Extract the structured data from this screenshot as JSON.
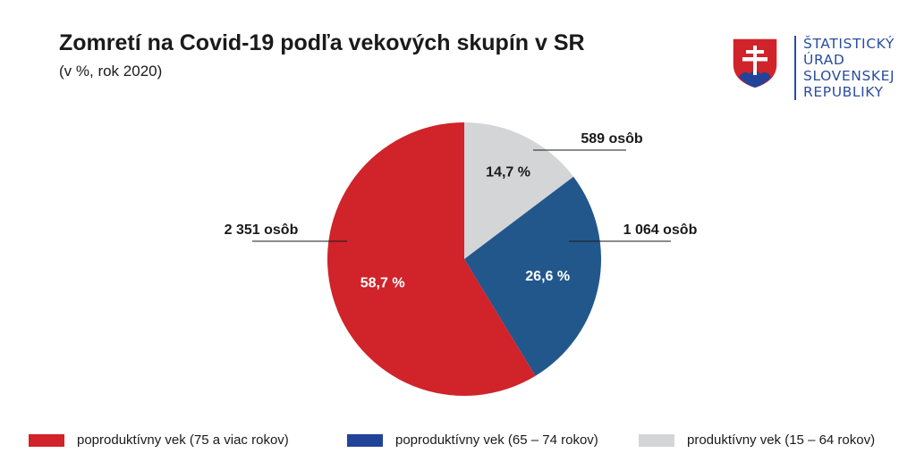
{
  "header": {
    "title": "Zomretí na Covid-19 podľa vekových skupín v SR",
    "subtitle": "(v %, rok 2020)"
  },
  "logo": {
    "lines": [
      "ŠTATISTICKÝ",
      "ÚRAD",
      "SLOVENSKEJ",
      "REPUBLIKY"
    ],
    "icon": "slovak-coat-of-arms-icon",
    "color": "#2a4da0"
  },
  "chart_data": {
    "type": "pie",
    "title": "Zomretí na Covid-19 podľa vekových skupín v SR",
    "subtitle": "(v %, rok 2020)",
    "legend_position": "bottom",
    "slices": [
      {
        "name": "produktívny vek (15 – 64 rokov)",
        "value": 14.7,
        "label": "14,7 %",
        "count": 589,
        "count_label": "589 osôb",
        "color": "#d4d5d7",
        "text_color": "#1a1a1a"
      },
      {
        "name": "poproduktívny vek (65 – 74 rokov)",
        "value": 26.6,
        "label": "26,6 %",
        "count": 1064,
        "count_label": "1 064 osôb",
        "color": "#22578c",
        "text_color": "#ffffff"
      },
      {
        "name": "poproduktívny vek (75 a viac rokov)",
        "value": 58.7,
        "label": "58,7 %",
        "count": 2351,
        "count_label": "2 351 osôb",
        "color": "#d0232a",
        "text_color": "#ffffff"
      }
    ],
    "legend": [
      {
        "label": "poproduktívny vek (75 a viac rokov)",
        "color": "#d0232a"
      },
      {
        "label": "poproduktívny vek (65 – 74 rokov)",
        "color": "#22439a"
      },
      {
        "label": "produktívny vek (15 – 64 rokov)",
        "color": "#d4d5d7"
      }
    ]
  }
}
